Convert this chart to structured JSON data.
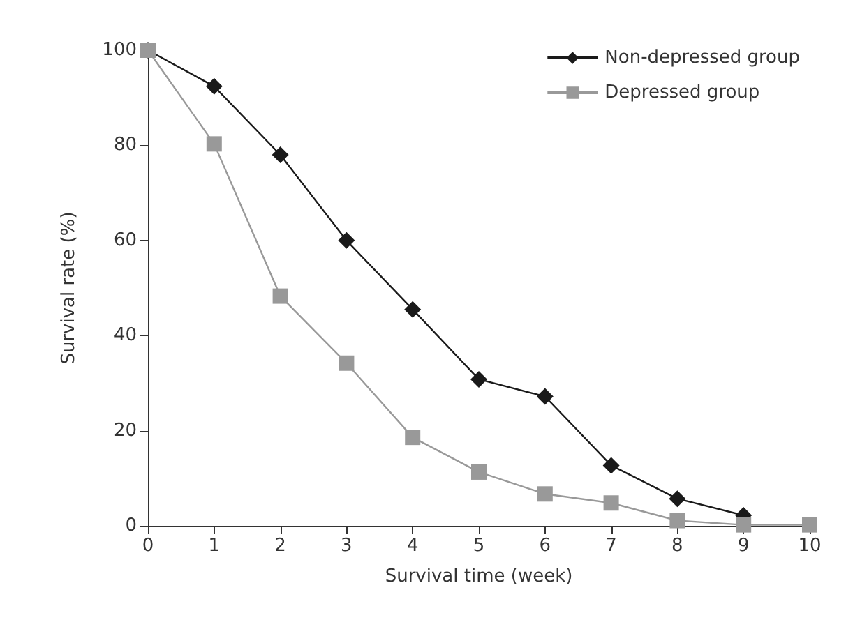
{
  "chart_data": {
    "type": "line",
    "xlabel": "Survival time (week)",
    "ylabel": "Survival rate (%)",
    "x": [
      0,
      1,
      2,
      3,
      4,
      5,
      6,
      7,
      8,
      9,
      10
    ],
    "series": [
      {
        "name": "Non-depressed group",
        "color": "#1a1a1a",
        "marker": "diamond",
        "values": [
          100,
          92.4,
          78.0,
          60.0,
          45.5,
          30.8,
          27.2,
          12.7,
          5.7,
          2.2,
          null
        ]
      },
      {
        "name": "Depressed group",
        "color": "#999999",
        "marker": "square",
        "values": [
          100,
          80.3,
          48.3,
          34.2,
          18.6,
          11.3,
          6.7,
          4.8,
          1.1,
          0.2,
          0.2
        ]
      }
    ],
    "xlim": [
      0,
      10
    ],
    "xticks": [
      0,
      1,
      2,
      3,
      4,
      5,
      6,
      7,
      8,
      9,
      10
    ],
    "ylim": [
      0,
      100
    ],
    "yticks": [
      0,
      20,
      40,
      60,
      80,
      100
    ],
    "grid": false,
    "legend": "top right",
    "line_style": "solid"
  }
}
